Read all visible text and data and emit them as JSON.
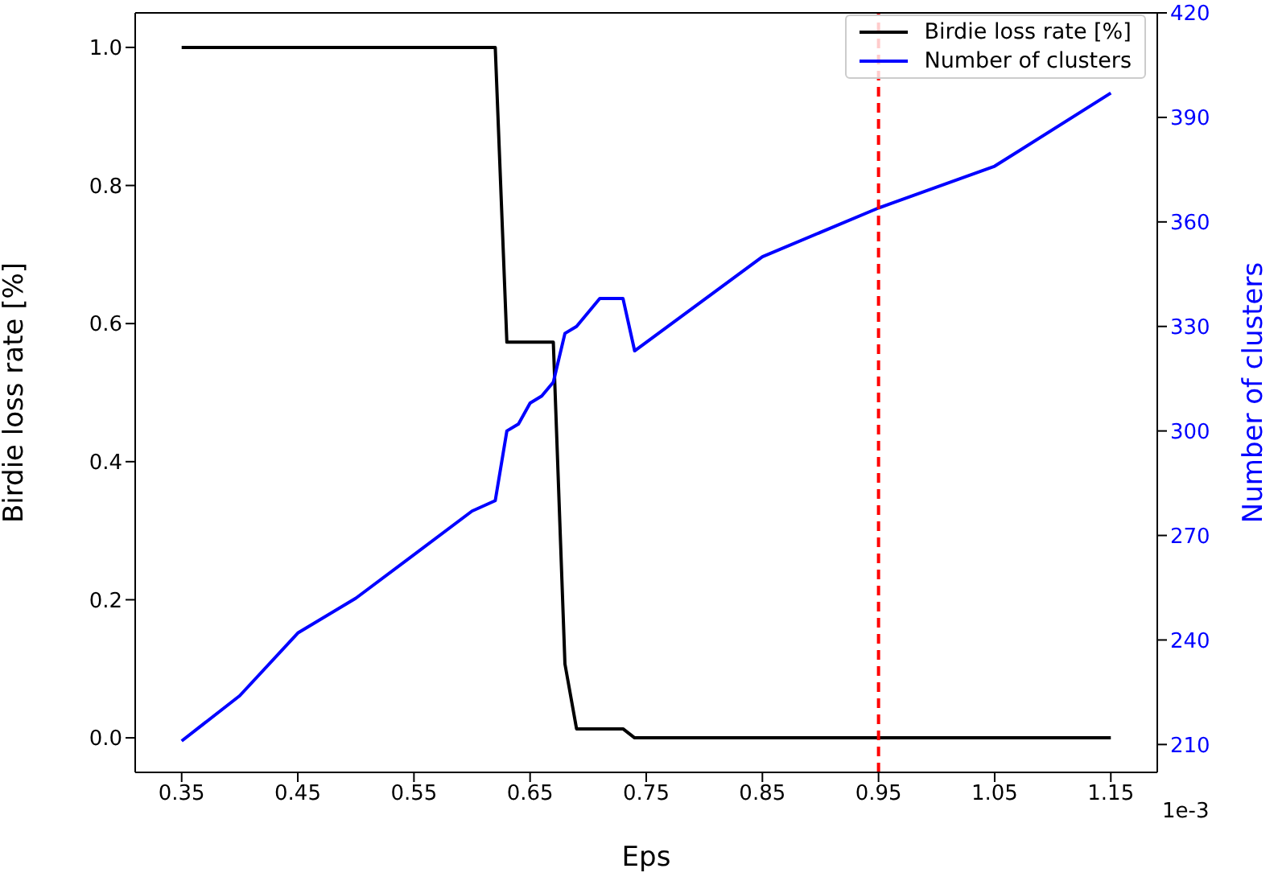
{
  "chart_data": {
    "type": "line",
    "xlabel": "Eps",
    "ylabel": "Birdie loss rate [%]",
    "y2label": "Number of clusters",
    "annotations": [
      "1e-3"
    ],
    "xlim": [
      0.31,
      1.19
    ],
    "xticks": [
      0.35,
      0.45,
      0.55,
      0.65,
      0.75,
      0.85,
      0.95,
      1.05,
      1.15
    ],
    "ylim": [
      -0.05,
      1.05
    ],
    "yticks": [
      {
        "value": 0,
        "label": "0.0"
      },
      0.2,
      0.4,
      0.6,
      0.8,
      {
        "value": 1,
        "label": "1.0"
      }
    ],
    "y2lim": [
      202,
      420
    ],
    "y2ticks": [
      210,
      240,
      270,
      300,
      330,
      360,
      390,
      420
    ],
    "legend": "top right",
    "series": [
      {
        "name": "Birdie loss rate [%]",
        "color": "#000000",
        "x": [
          0.35,
          0.62,
          0.63,
          0.67,
          0.68,
          0.69,
          0.73,
          0.74,
          1.15
        ],
        "values": [
          1.0,
          1.0,
          0.573,
          0.573,
          0.107,
          0.013,
          0.013,
          0.0,
          0.0
        ]
      },
      {
        "name": "Number of clusters",
        "color": "#0000ff",
        "axis": "y2",
        "x": [
          0.35,
          0.4,
          0.45,
          0.5,
          0.6,
          0.62,
          0.63,
          0.64,
          0.65,
          0.66,
          0.67,
          0.68,
          0.69,
          0.71,
          0.73,
          0.74,
          0.85,
          0.95,
          1.05,
          1.15
        ],
        "values": [
          211,
          224,
          242,
          252,
          277,
          280,
          300,
          302,
          308,
          310,
          314,
          328,
          330,
          338,
          338,
          323,
          350,
          364,
          376,
          397
        ]
      }
    ],
    "ref_lines": [
      {
        "axis": "x",
        "value": 0.95,
        "color": "#ff0000",
        "line_style": "dashed"
      }
    ]
  }
}
